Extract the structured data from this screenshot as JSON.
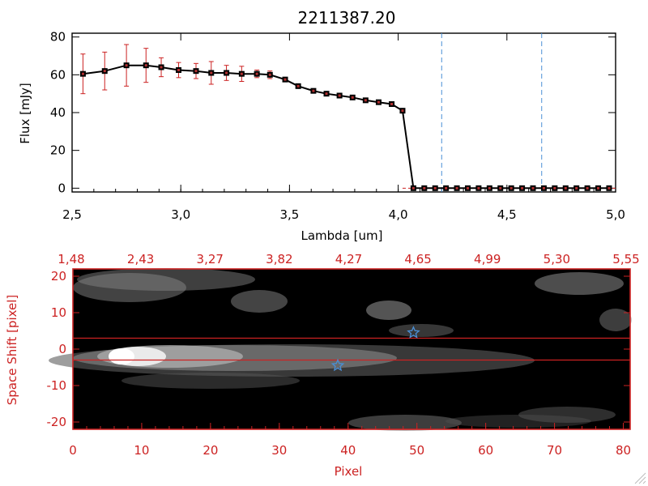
{
  "chart_data": [
    {
      "type": "line",
      "title": "2211387.20",
      "xlabel": "Lambda [um]",
      "ylabel": "Flux [mJy]",
      "xlim": [
        2.5,
        5.0
      ],
      "ylim": [
        -2,
        82
      ],
      "xticks": [
        "2.5",
        "3.0",
        "3.5",
        "4.0",
        "4.5",
        "5.0"
      ],
      "yticks": [
        "0",
        "20",
        "40",
        "60",
        "80"
      ],
      "vlines": [
        4.2,
        4.66
      ],
      "series": [
        {
          "x": [
            2.55,
            2.65,
            2.75,
            2.84,
            2.91,
            2.99,
            3.07,
            3.14,
            3.21,
            3.28,
            3.35,
            3.41,
            3.48,
            3.54,
            3.61,
            3.67,
            3.73,
            3.79,
            3.85,
            3.91,
            3.97,
            4.02,
            4.07,
            4.12,
            4.17,
            4.22,
            4.27,
            4.32,
            4.37,
            4.42,
            4.47,
            4.52,
            4.57,
            4.62,
            4.67,
            4.72,
            4.77,
            4.82,
            4.87,
            4.92,
            4.97
          ],
          "y": [
            60.5,
            62.0,
            65.0,
            65.0,
            64.0,
            62.5,
            62.0,
            61.0,
            61.0,
            60.5,
            60.5,
            60.0,
            57.5,
            54.0,
            51.5,
            50.0,
            49.0,
            48.0,
            46.5,
            45.5,
            44.5,
            41.0,
            0,
            0,
            0,
            0,
            0,
            0,
            0,
            0,
            0,
            0,
            0,
            0,
            0,
            0,
            0,
            0,
            0,
            0,
            0
          ],
          "err": [
            10.5,
            10,
            11,
            9,
            5,
            4,
            4,
            6,
            4,
            4,
            2,
            2,
            0,
            0,
            0,
            0,
            0,
            0,
            0,
            0,
            0,
            0,
            0,
            0,
            0,
            0,
            0,
            0,
            0,
            0,
            0,
            0,
            0,
            0,
            0,
            0,
            0,
            0,
            0,
            0,
            0
          ]
        }
      ]
    },
    {
      "type": "heatmap",
      "xlabel": "Pixel",
      "ylabel": "Space Shift [pixel]",
      "xlim": [
        0,
        81
      ],
      "ylim": [
        -22,
        22
      ],
      "xticks": [
        "0",
        "10",
        "20",
        "30",
        "40",
        "50",
        "60",
        "70",
        "80"
      ],
      "yticks": [
        "-20",
        "-10",
        "0",
        "10",
        "20"
      ],
      "top_ticks": [
        "1.48",
        "2.43",
        "3.27",
        "3.82",
        "4.27",
        "4.65",
        "4.99",
        "5.30",
        "5.55"
      ],
      "hlines": [
        3,
        -3
      ],
      "markers": [
        {
          "x": 49.5,
          "y": 4.5
        },
        {
          "x": 38.5,
          "y": -4.5
        }
      ]
    }
  ]
}
